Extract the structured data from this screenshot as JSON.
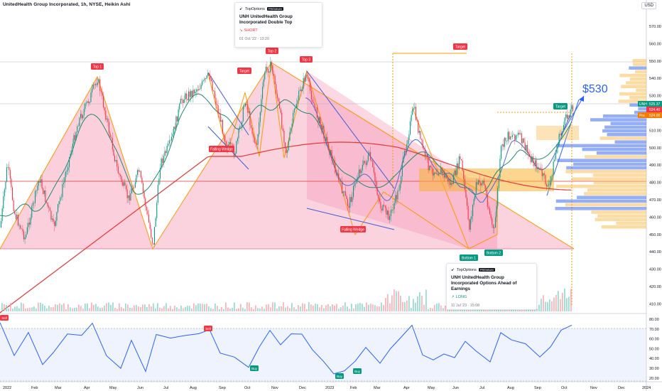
{
  "header": {
    "symbol_line": "UnitedHealth Group Incorporated, 1h, NYSE, Heikin Ashi",
    "currency_button": "USD"
  },
  "price_axis": {
    "ticks": [
      "570.00",
      "560.00",
      "550.00",
      "540.00",
      "530.00",
      "520.00",
      "510.00",
      "500.00",
      "490.00",
      "480.00",
      "470.00",
      "460.00",
      "450.00",
      "440.00",
      "430.00",
      "420.00",
      "410.00"
    ],
    "labels": {
      "unh": {
        "label": "UNH",
        "value": "525.37",
        "color": "#089981"
      },
      "mid": {
        "value": "524.40",
        "color": "#f23645"
      },
      "pre": {
        "label": "Pre",
        "value": "524.00",
        "color": "#f57c00"
      }
    }
  },
  "rsi_axis": {
    "ticks": [
      "80.00",
      "70.00",
      "60.00",
      "50.00",
      "40.00",
      "30.00",
      "20.00"
    ]
  },
  "time_axis": {
    "labels": [
      "2022",
      "Feb",
      "Mar",
      "Apr",
      "May",
      "Jun",
      "Jul",
      "Aug",
      "Sep",
      "Oct",
      "Nov",
      "Dec",
      "2023",
      "Feb",
      "Mar",
      "Apr",
      "May",
      "Jun",
      "Jul",
      "Aug",
      "Sep",
      "Oct",
      "Nov",
      "Dec",
      "2024"
    ]
  },
  "annotations": {
    "top1": "Top 1",
    "top2": "Top 2",
    "top3": "Top 3",
    "target1": "Target",
    "target2": "Target",
    "target3": "Target",
    "falling_wedge1": "Falling Wedge",
    "falling_wedge2": "Falling Wedge",
    "bottom1": "Bottom 1",
    "bottom2": "Bottom 2",
    "price_target": "$530",
    "rsi_sell1": "Sell",
    "rsi_sell2": "Sell",
    "rsi_buy1": "Buy",
    "rsi_buy2": "Buy",
    "rsi_buy3": "Buy"
  },
  "ideas": [
    {
      "brand": "TopOptions",
      "badge": "PREMIUM",
      "title": "UNH UnitedHealth Group Incorporated Double Top",
      "side": "SHORT",
      "date": "01 Oct '22 · 13:20"
    },
    {
      "brand": "TopOptions",
      "badge": "PREMIUM",
      "title": "UNH UnitedHealth Group Incorporated Options Ahead of Earnings",
      "side": "LONG",
      "date": "11 Jul '23 · 15:08"
    }
  ],
  "colors": {
    "up_candle": "#089981",
    "down_candle": "#f23645",
    "pink_fill": "#f7a8c0",
    "orange_line": "#ff9800",
    "blue_line": "#3f5bd8",
    "ma_green": "#1f8a6b",
    "ma_red": "#e53935",
    "rsi_line": "#2962ff",
    "vp_blue": "#3d6cf0",
    "vp_orange": "#f9b233"
  }
}
